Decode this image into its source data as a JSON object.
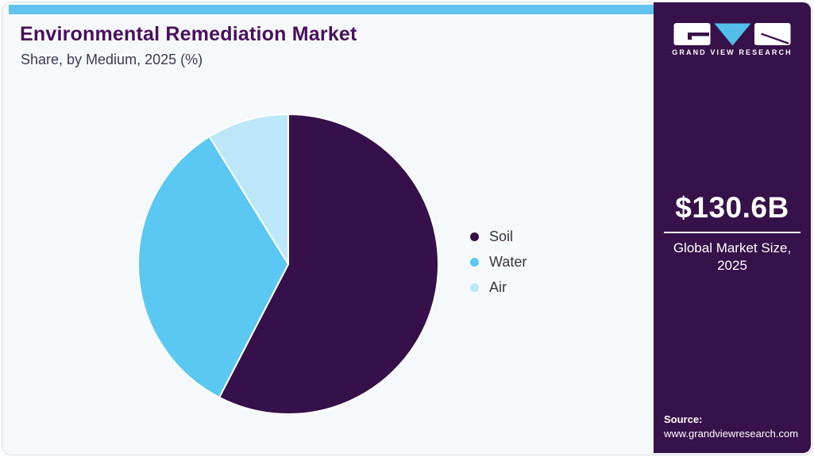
{
  "header": {
    "title": "Environmental Remediation Market",
    "subtitle": "Share, by Medium, 2025 (%)"
  },
  "chart_data": {
    "type": "pie",
    "title": "Environmental Remediation Market Share, by Medium, 2025 (%)",
    "categories": [
      "Soil",
      "Water",
      "Air"
    ],
    "values": [
      57.6,
      33.6,
      8.8
    ],
    "unit": "%",
    "colors": [
      "#36104A",
      "#5BC8F4",
      "#BCE7F8"
    ],
    "start_angle_deg": 0,
    "direction": "clockwise",
    "legend_position": "right",
    "slice_border_color": "#FFFFFF"
  },
  "sidebar": {
    "brand_name": "GRAND VIEW RESEARCH",
    "market_size": "$130.6B",
    "market_label_line1": "Global Market Size,",
    "market_label_line2": "2025",
    "source_label": "Source:",
    "source_url": "www.grandviewresearch.com"
  },
  "theme": {
    "top_bar": "#5EC3EE",
    "card_background": "#F6F9FC",
    "card_border": "#D8DDE4",
    "title_color": "#48105C",
    "subtitle_color": "#3E3852",
    "legend_text_color": "#39333F",
    "sidebar_background": "#37114A",
    "logo_triangle_blue": "#52BFEA"
  }
}
